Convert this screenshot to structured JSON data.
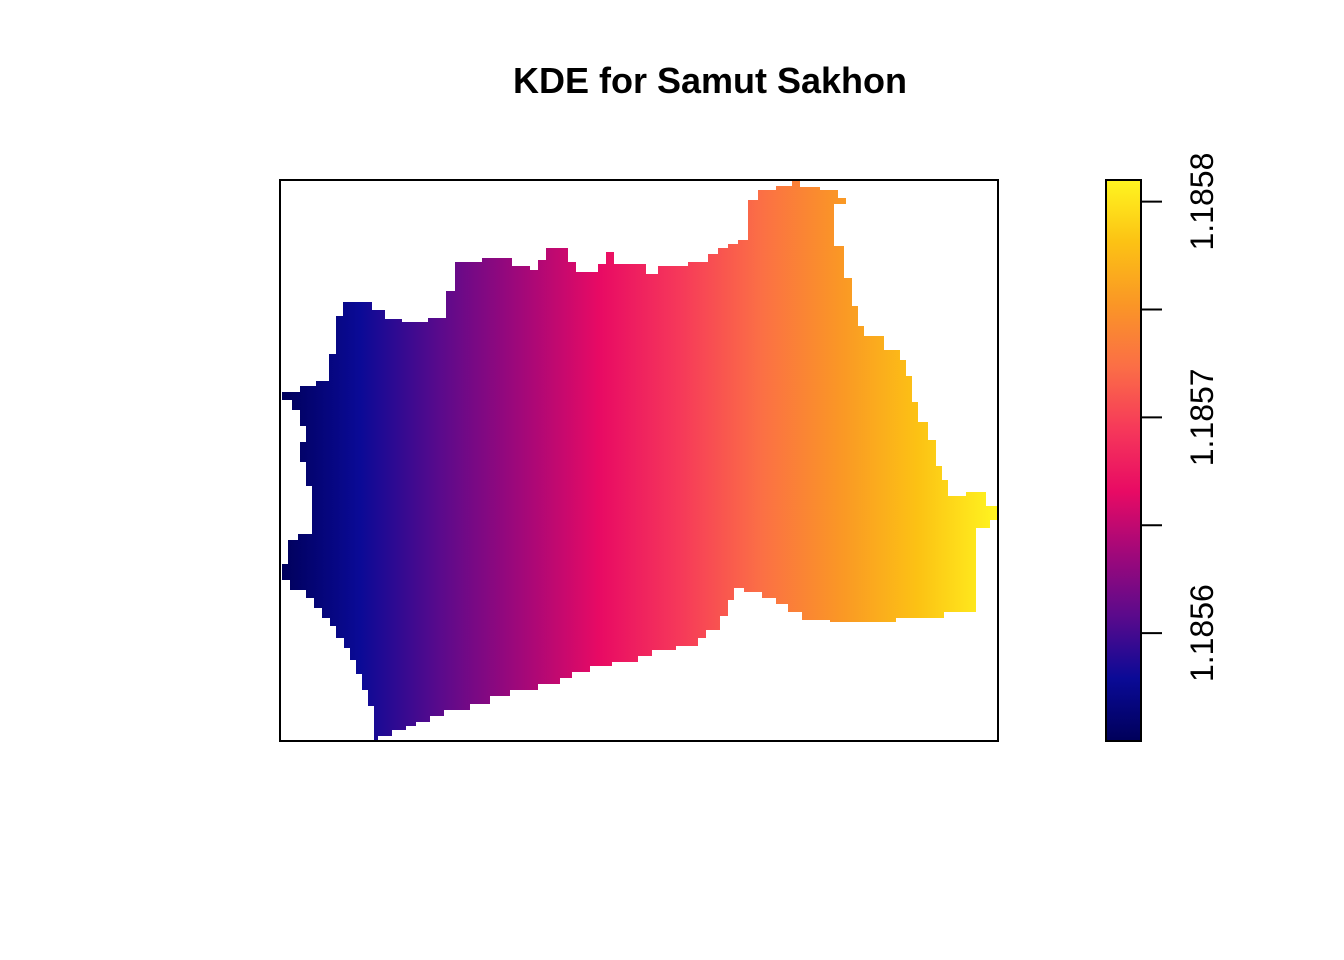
{
  "chart_data": {
    "type": "heatmap",
    "title": "KDE for Samut Sakhon",
    "xlabel": "",
    "ylabel": "",
    "axes_shown": false,
    "gradient_direction": "west-to-east",
    "value_range": [
      1.18555,
      1.18581
    ],
    "colorbar": {
      "ticks": [
        1.1856,
        1.1857,
        1.1858
      ],
      "tick_labels": [
        "1.1856",
        "1.1857",
        "1.1858"
      ],
      "colors": [
        "#00005a",
        "#0a0a96",
        "#5a0a8c",
        "#a0087a",
        "#e80a64",
        "#f6385a",
        "#fb6e46",
        "#fa9626",
        "#fcc214",
        "#fff520"
      ]
    }
  }
}
